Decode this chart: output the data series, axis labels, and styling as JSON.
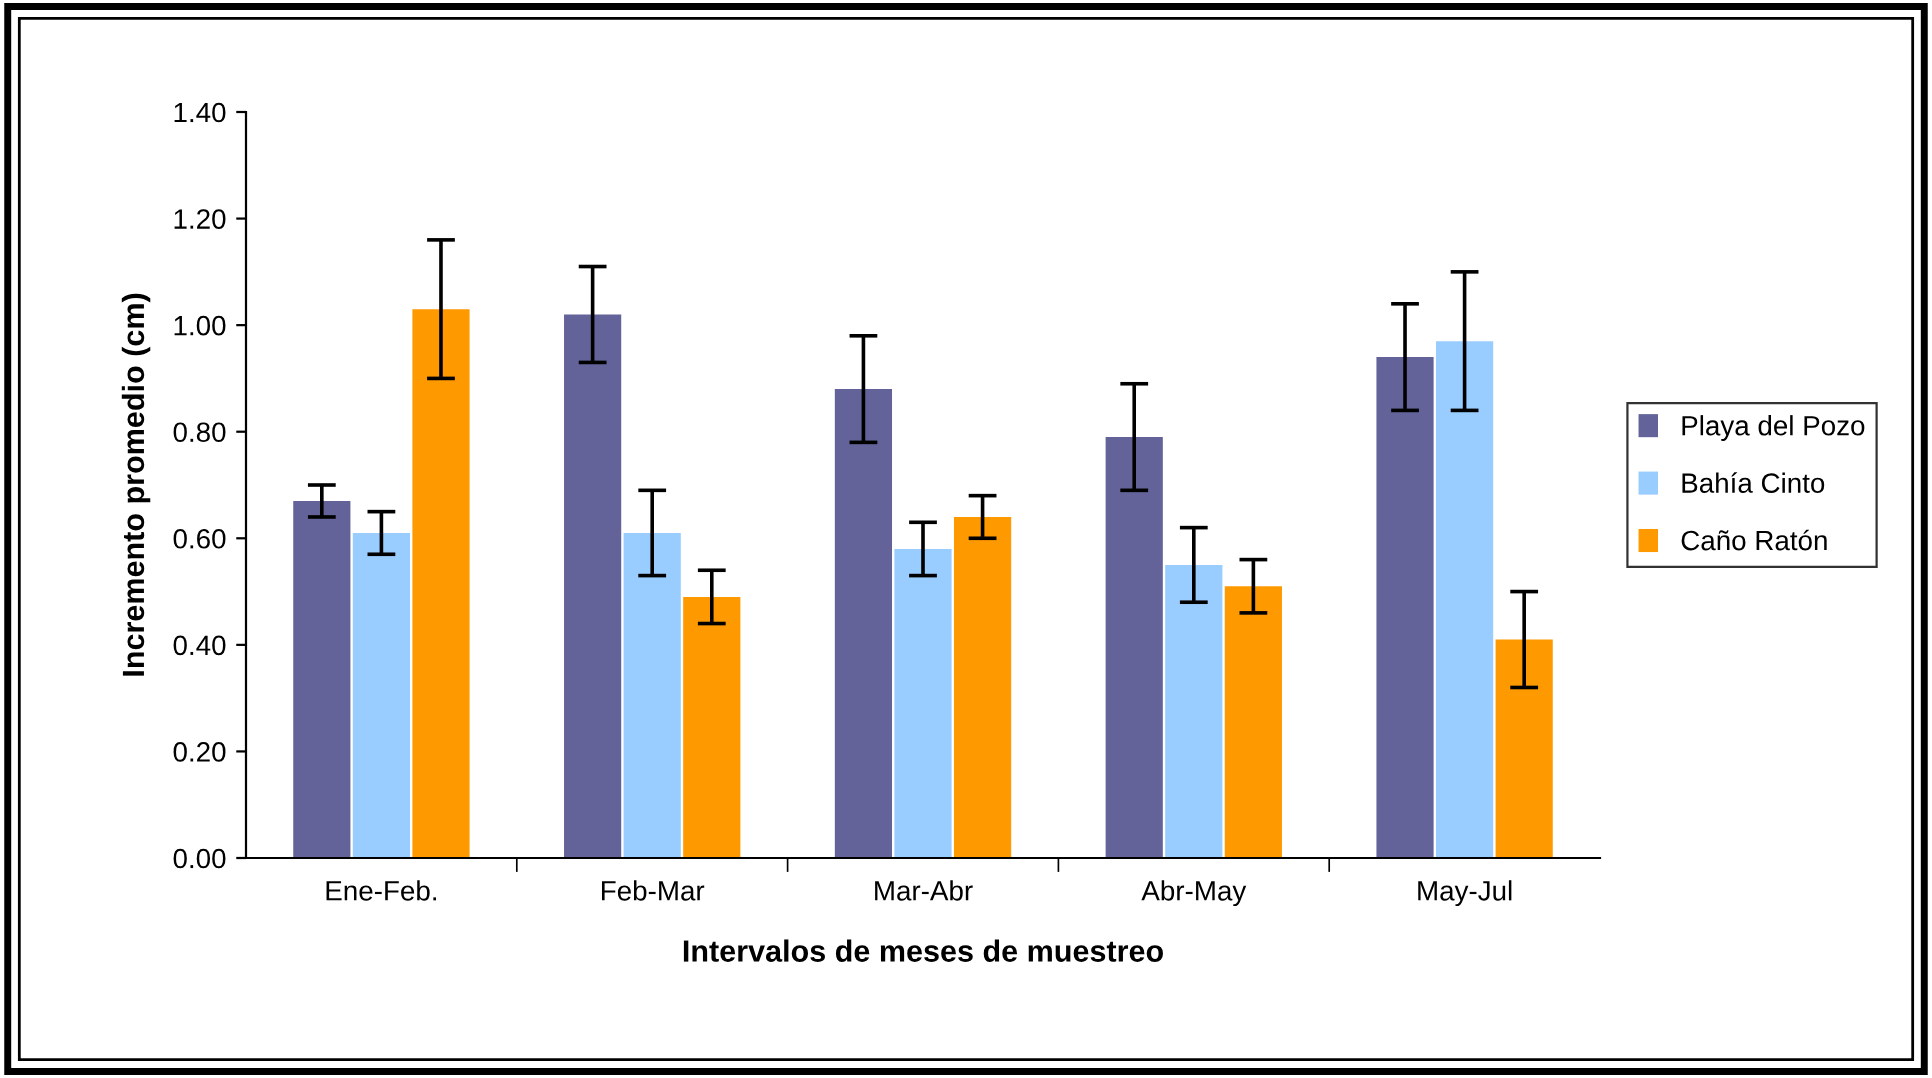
{
  "chart_data": {
    "type": "bar",
    "xlabel": "Intervalos de meses de muestreo",
    "ylabel": "Incremento promedio (cm)",
    "categories": [
      "Ene-Feb.",
      "Feb-Mar",
      "Mar-Abr",
      "Abr-May",
      "May-Jul"
    ],
    "series": [
      {
        "name": "Playa del Pozo",
        "color": "#63639a",
        "values": [
          0.67,
          1.02,
          0.88,
          0.79,
          0.94
        ],
        "errors": [
          0.03,
          0.09,
          0.1,
          0.1,
          0.1
        ]
      },
      {
        "name": "Bahía Cinto",
        "color": "#99ccff",
        "values": [
          0.61,
          0.61,
          0.58,
          0.55,
          0.97
        ],
        "errors": [
          0.04,
          0.08,
          0.05,
          0.07,
          0.13
        ]
      },
      {
        "name": "Caño Ratón",
        "color": "#ff9900",
        "values": [
          1.03,
          0.49,
          0.64,
          0.51,
          0.41
        ],
        "errors": [
          0.13,
          0.05,
          0.04,
          0.05,
          0.09
        ]
      }
    ],
    "ylim": [
      0,
      1.4
    ],
    "yticks": [
      {
        "value": 0,
        "label": "0.00"
      },
      {
        "value": 0.2,
        "label": "0.20"
      },
      {
        "value": 0.4,
        "label": "0.40"
      },
      {
        "value": 0.6,
        "label": "0.60"
      },
      {
        "value": 0.8,
        "label": "0.80"
      },
      {
        "value": 1.0,
        "label": "1.00"
      },
      {
        "value": 1.2,
        "label": "1.20"
      },
      {
        "value": 1.4,
        "label": "1.40"
      }
    ],
    "grid": false,
    "legend": "right"
  }
}
